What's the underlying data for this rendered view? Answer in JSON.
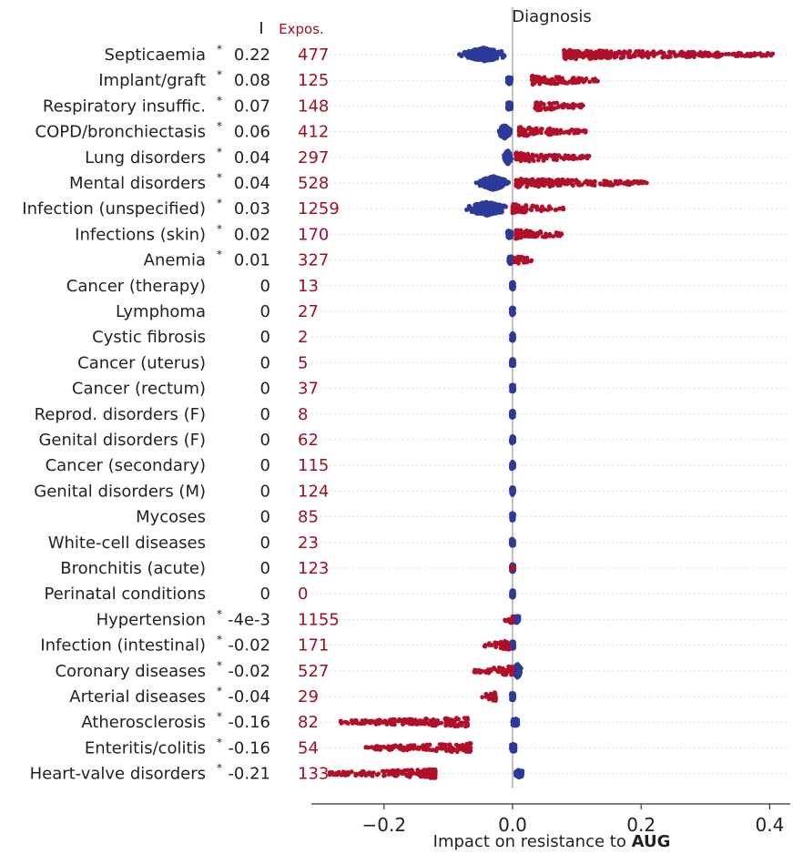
{
  "chart_data": {
    "type": "scatter",
    "subtype": "beeswarm",
    "title": "Diagnosis",
    "xlabel_prefix": "Impact on resistance to ",
    "xlabel_bold": "AUG",
    "col_i_header": "I",
    "col_expo_header": "Expos.",
    "xlim": [
      -0.29,
      0.44
    ],
    "xticks": [
      -0.2,
      0.0,
      0.2,
      0.4
    ],
    "xtick_labels": [
      "−0.2",
      "0.0",
      "0.2",
      "0.4"
    ],
    "colors": {
      "negative": "#2c3a9a",
      "positive": "#b0102a",
      "expo_text": "#a00f25",
      "zero_line": "#999999"
    },
    "rows": [
      {
        "label": "Septicaemia",
        "star": "*",
        "i": "0.22",
        "expos": "477",
        "blue": [
          -0.09,
          0.0,
          0.11
        ],
        "red": [
          0.08,
          0.405
        ]
      },
      {
        "label": "Implant/graft",
        "star": "*",
        "i": "0.08",
        "expos": "125",
        "blue": [
          -0.008,
          -0.002,
          0.05
        ],
        "red": [
          0.03,
          0.135
        ]
      },
      {
        "label": "Respiratory insuffic.",
        "star": "*",
        "i": "0.07",
        "expos": "148",
        "blue": [
          -0.008,
          -0.002,
          0.05
        ],
        "red": [
          0.035,
          0.11
        ]
      },
      {
        "label": "COPD/bronchiectasis",
        "star": "*",
        "i": "0.06",
        "expos": "412",
        "blue": [
          -0.025,
          0.0,
          0.07
        ],
        "red": [
          0.01,
          0.115
        ]
      },
      {
        "label": "Lung disorders",
        "star": "*",
        "i": "0.04",
        "expos": "297",
        "blue": [
          -0.015,
          0.0,
          0.06
        ],
        "red": [
          0.005,
          0.12
        ]
      },
      {
        "label": "Mental disorders",
        "star": "*",
        "i": "0.04",
        "expos": "528",
        "blue": [
          -0.06,
          0.0,
          0.05
        ],
        "red": [
          0.005,
          0.21
        ]
      },
      {
        "label": "Infection (unspecified)",
        "star": "*",
        "i": "0.03",
        "expos": "1259",
        "blue": [
          -0.08,
          0.0,
          0.1
        ],
        "red": [
          0.0,
          0.08
        ]
      },
      {
        "label": "Infections (skin)",
        "star": "*",
        "i": "0.02",
        "expos": "170",
        "blue": [
          -0.008,
          -0.002,
          0.05
        ],
        "red": [
          0.005,
          0.08
        ]
      },
      {
        "label": "Anemia",
        "star": "*",
        "i": "0.01",
        "expos": "327",
        "blue": [
          -0.006,
          -0.001,
          0.05
        ],
        "red": [
          0.003,
          0.03
        ]
      },
      {
        "label": "Cancer (therapy)",
        "star": "",
        "i": "0",
        "expos": "13",
        "blue": [
          -0.002,
          0.002,
          0.05
        ],
        "red": []
      },
      {
        "label": "Lymphoma",
        "star": "",
        "i": "0",
        "expos": "27",
        "blue": [
          -0.002,
          0.002,
          0.05
        ],
        "red": []
      },
      {
        "label": "Cystic fibrosis",
        "star": "",
        "i": "0",
        "expos": "2",
        "blue": [
          -0.002,
          0.002,
          0.05
        ],
        "red": []
      },
      {
        "label": "Cancer (uterus)",
        "star": "",
        "i": "0",
        "expos": "5",
        "blue": [
          -0.002,
          0.002,
          0.05
        ],
        "red": []
      },
      {
        "label": "Cancer (rectum)",
        "star": "",
        "i": "0",
        "expos": "37",
        "blue": [
          -0.002,
          0.002,
          0.05
        ],
        "red": []
      },
      {
        "label": "Reprod. disorders (F)",
        "star": "",
        "i": "0",
        "expos": "8",
        "blue": [
          -0.002,
          0.002,
          0.05
        ],
        "red": []
      },
      {
        "label": "Genital disorders (F)",
        "star": "",
        "i": "0",
        "expos": "62",
        "blue": [
          -0.002,
          0.002,
          0.05
        ],
        "red": []
      },
      {
        "label": "Cancer (secondary)",
        "star": "",
        "i": "0",
        "expos": "115",
        "blue": [
          -0.002,
          0.002,
          0.05
        ],
        "red": []
      },
      {
        "label": "Genital disorders (M)",
        "star": "",
        "i": "0",
        "expos": "124",
        "blue": [
          -0.002,
          0.002,
          0.05
        ],
        "red": []
      },
      {
        "label": "Mycoses",
        "star": "",
        "i": "0",
        "expos": "85",
        "blue": [
          -0.002,
          0.002,
          0.05
        ],
        "red": []
      },
      {
        "label": "White-cell diseases",
        "star": "",
        "i": "0",
        "expos": "23",
        "blue": [
          -0.002,
          0.002,
          0.05
        ],
        "red": []
      },
      {
        "label": "Bronchitis (acute)",
        "star": "",
        "i": "0",
        "expos": "123",
        "blue": [
          -0.002,
          0.002,
          0.05
        ],
        "red": [
          -0.002,
          0.002
        ]
      },
      {
        "label": "Perinatal conditions",
        "star": "",
        "i": "0",
        "expos": "0",
        "blue": [
          -0.002,
          0.002,
          0.05
        ],
        "red": []
      },
      {
        "label": "Hypertension",
        "star": "*",
        "i": "-4e-3",
        "expos": "1155",
        "blue": [
          0.0,
          0.01
        ],
        "red": [
          -0.015,
          0.0
        ]
      },
      {
        "label": "Infection (intestinal)",
        "star": "*",
        "i": "-0.02",
        "expos": "171",
        "blue": [
          -0.002,
          0.002
        ],
        "red": [
          -0.045,
          -0.005
        ]
      },
      {
        "label": "Coronary diseases",
        "star": "*",
        "i": "-0.02",
        "expos": "527",
        "blue": [
          0.0,
          0.015
        ],
        "red": [
          -0.06,
          0.0
        ]
      },
      {
        "label": "Arterial diseases",
        "star": "*",
        "i": "-0.04",
        "expos": "29",
        "blue": [
          -0.002,
          0.002
        ],
        "red": [
          -0.055,
          -0.025
        ]
      },
      {
        "label": "Atherosclerosis",
        "star": "*",
        "i": "-0.16",
        "expos": "82",
        "blue": [
          0.0,
          0.008
        ],
        "red": [
          -0.27,
          -0.07
        ]
      },
      {
        "label": "Enteritis/colitis",
        "star": "*",
        "i": "-0.16",
        "expos": "54",
        "blue": [
          -0.002,
          0.004
        ],
        "red": [
          -0.23,
          -0.065
        ]
      },
      {
        "label": "Heart-valve disorders",
        "star": "*",
        "i": "-0.21",
        "expos": "133",
        "blue": [
          0.005,
          0.015
        ],
        "red": [
          -0.285,
          -0.12
        ]
      }
    ]
  }
}
